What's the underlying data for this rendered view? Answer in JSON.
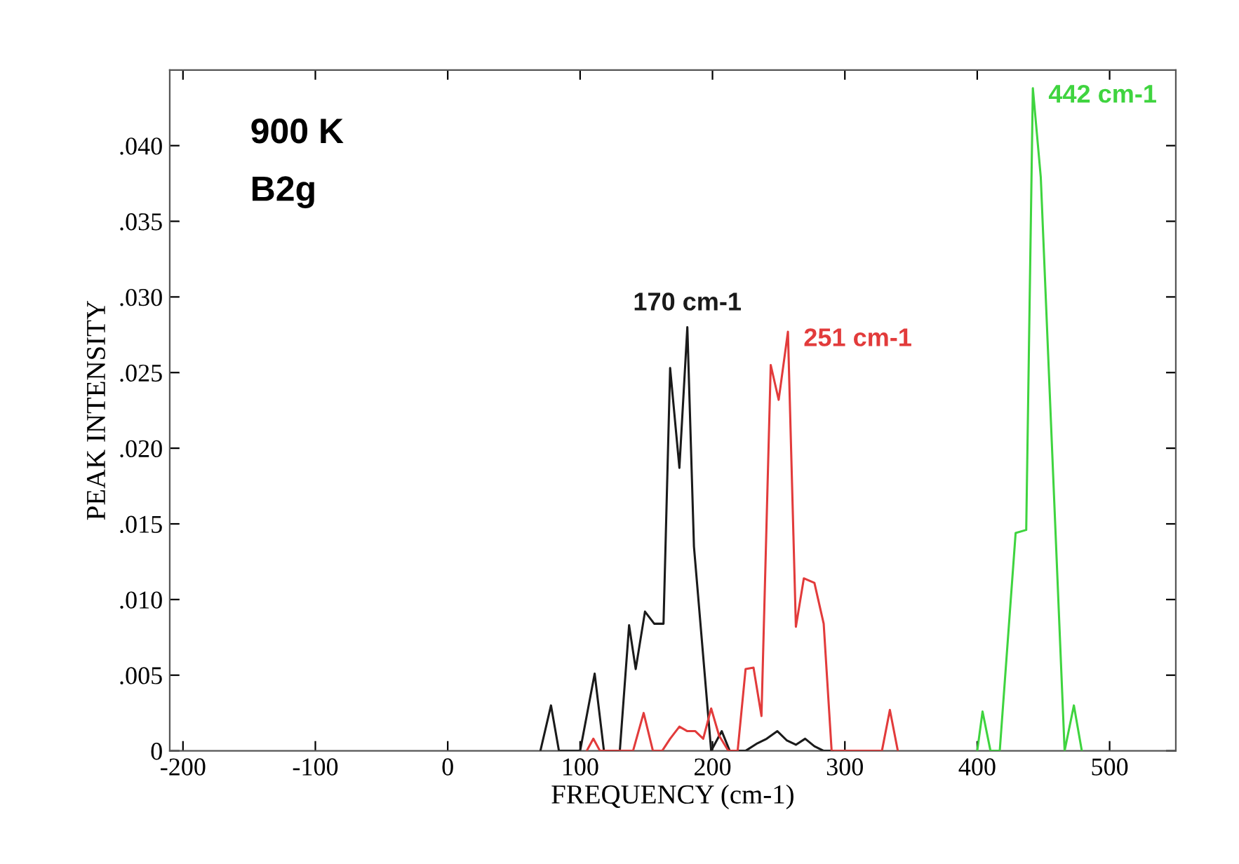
{
  "chart_data": {
    "type": "line",
    "xlabel": "FREQUENCY (cm-1)",
    "ylabel": "PEAK INTENSITY",
    "annotations": [
      "900 K",
      "B2g"
    ],
    "series": [
      {
        "name": "170 cm-1",
        "color": "#1a1a1a",
        "x": [
          70,
          78,
          84,
          100,
          111,
          118,
          130,
          137,
          142,
          149,
          156,
          163,
          168,
          175,
          181,
          186,
          199,
          207,
          213,
          225,
          234,
          241,
          249,
          256,
          263,
          270,
          277,
          284,
          291
        ],
        "values": [
          0,
          0.003,
          0,
          0,
          0.0051,
          0,
          0,
          0.0083,
          0.0054,
          0.0092,
          0.0084,
          0.0084,
          0.0253,
          0.0187,
          0.028,
          0.0135,
          0,
          0.0013,
          0,
          0,
          0.0005,
          0.0008,
          0.0013,
          0.0007,
          0.0004,
          0.0008,
          0.0003,
          0,
          0
        ]
      },
      {
        "name": "251 cm-1",
        "color": "#e23b3b",
        "x": [
          105,
          110,
          115,
          140,
          148,
          155,
          162,
          168,
          175,
          181,
          187,
          193,
          199,
          205,
          212,
          219,
          225,
          231,
          237,
          244,
          250,
          257,
          263,
          269,
          277,
          284,
          290,
          328,
          334,
          340
        ],
        "values": [
          0,
          0.0008,
          0,
          0,
          0.0025,
          0,
          0,
          0.0008,
          0.0016,
          0.0013,
          0.0013,
          0.0008,
          0.0028,
          0.001,
          0,
          0,
          0.0054,
          0.0055,
          0.0023,
          0.0255,
          0.0232,
          0.0277,
          0.0082,
          0.0114,
          0.0111,
          0.0084,
          0,
          0,
          0.0027,
          0
        ]
      },
      {
        "name": "442 cm-1",
        "color": "#3fd43f",
        "x": [
          400,
          404,
          410,
          417,
          429,
          437,
          442,
          448,
          466,
          473,
          479
        ],
        "values": [
          0,
          0.0026,
          0,
          0,
          0.0144,
          0.0146,
          0.0438,
          0.0379,
          0,
          0.003,
          0
        ]
      }
    ],
    "xlim": [
      -210,
      550
    ],
    "xticks": [
      -200,
      -100,
      0,
      100,
      200,
      300,
      400,
      500
    ],
    "ylim": [
      0,
      0.045
    ],
    "yticks": [
      0,
      {
        "value": 0.005,
        "label": ".005"
      },
      {
        "value": 0.01,
        "label": ".010"
      },
      {
        "value": 0.015,
        "label": ".015"
      },
      {
        "value": 0.02,
        "label": ".020"
      },
      {
        "value": 0.025,
        "label": ".025"
      },
      {
        "value": 0.03,
        "label": ".030"
      },
      {
        "value": 0.035,
        "label": ".035"
      },
      {
        "value": 0.04,
        "label": ".040"
      }
    ],
    "grid": false,
    "legend": false
  }
}
